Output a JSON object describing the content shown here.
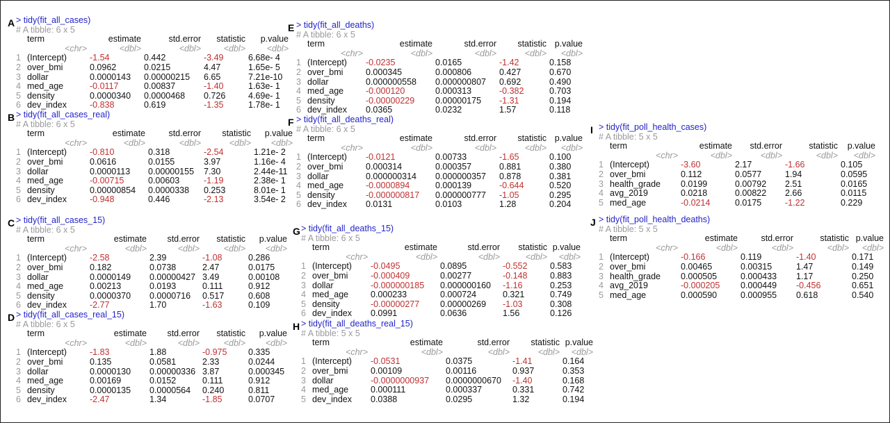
{
  "panels": [
    {
      "letter": "A",
      "command": "> tidy(fit_all_cases)",
      "tibble": "# A tibble: 6 x 5",
      "columns": [
        "term",
        "estimate",
        "std.error",
        "statistic",
        "p.value"
      ],
      "types": [
        "<chr>",
        "<dbl>",
        "<dbl>",
        "<dbl>",
        "<dbl>"
      ],
      "rows": [
        [
          "1",
          "(Intercept)",
          "-1.54",
          "0.442",
          "-3.49",
          "6.68e- 4"
        ],
        [
          "2",
          "over_bmi",
          "0.0962",
          "0.0215",
          "4.47",
          "1.65e- 5"
        ],
        [
          "3",
          "dollar",
          "0.0000143",
          "0.00000215",
          "6.65",
          "7.21e-10"
        ],
        [
          "4",
          "med_age",
          "-0.0117",
          "0.00837",
          "-1.40",
          "1.63e- 1"
        ],
        [
          "5",
          "density",
          "0.0000340",
          "0.0000468",
          "0.726",
          "4.69e- 1"
        ],
        [
          "6",
          "dev_index",
          "-0.838",
          "0.619",
          "-1.35",
          "1.78e- 1"
        ]
      ]
    },
    {
      "letter": "B",
      "command": "> tidy(fit_all_cases_real)",
      "tibble": "# A tibble: 6 x 5",
      "columns": [
        "term",
        "estimate",
        "std.error",
        "statistic",
        "p.value"
      ],
      "types": [
        "<chr>",
        "<dbl>",
        "<dbl>",
        "<dbl>",
        "<dbl>"
      ],
      "rows": [
        [
          "1",
          "(Intercept)",
          "-0.810",
          "0.318",
          "-2.54",
          "1.21e- 2"
        ],
        [
          "2",
          "over_bmi",
          "0.0616",
          "0.0155",
          "3.97",
          "1.16e- 4"
        ],
        [
          "3",
          "dollar",
          "0.0000113",
          "0.00000155",
          "7.30",
          "2.44e-11"
        ],
        [
          "4",
          "med_age",
          "-0.00715",
          "0.00603",
          "-1.19",
          "2.38e- 1"
        ],
        [
          "5",
          "density",
          "0.00000854",
          "0.0000338",
          "0.253",
          "8.01e- 1"
        ],
        [
          "6",
          "dev_index",
          "-0.948",
          "0.446",
          "-2.13",
          "3.54e- 2"
        ]
      ]
    },
    {
      "letter": "C",
      "command": "> tidy(fit_all_cases_15)",
      "tibble": "# A tibble: 6 x 5",
      "columns": [
        "term",
        "estimate",
        "std.error",
        "statistic",
        "p.value"
      ],
      "types": [
        "<chr>",
        "<dbl>",
        "<dbl>",
        "<dbl>",
        "<dbl>"
      ],
      "rows": [
        [
          "1",
          "(Intercept)",
          "-2.58",
          "2.39",
          "-1.08",
          "0.286"
        ],
        [
          "2",
          "over_bmi",
          "0.182",
          "0.0738",
          "2.47",
          "0.0175"
        ],
        [
          "3",
          "dollar",
          "0.0000149",
          "0.00000427",
          "3.49",
          "0.00108"
        ],
        [
          "4",
          "med_age",
          "0.00213",
          "0.0193",
          "0.111",
          "0.912"
        ],
        [
          "5",
          "density",
          "0.0000370",
          "0.0000716",
          "0.517",
          "0.608"
        ],
        [
          "6",
          "dev_index",
          "-2.77",
          "1.70",
          "-1.63",
          "0.109"
        ]
      ]
    },
    {
      "letter": "D",
      "command": "> tidy(fit_all_cases_real_15)",
      "tibble": "# A tibble: 6 x 5",
      "columns": [
        "term",
        "estimate",
        "std.error",
        "statistic",
        "p.value"
      ],
      "types": [
        "<chr>",
        "<dbl>",
        "<dbl>",
        "<dbl>",
        "<dbl>"
      ],
      "rows": [
        [
          "1",
          "(Intercept)",
          "-1.83",
          "1.88",
          "-0.975",
          "0.335"
        ],
        [
          "2",
          "over_bmi",
          "0.135",
          "0.0581",
          "2.33",
          "0.0244"
        ],
        [
          "3",
          "dollar",
          "0.0000130",
          "0.00000336",
          "3.87",
          "0.000345"
        ],
        [
          "4",
          "med_age",
          "0.00169",
          "0.0152",
          "0.111",
          "0.912"
        ],
        [
          "5",
          "density",
          "0.0000135",
          "0.0000564",
          "0.240",
          "0.811"
        ],
        [
          "6",
          "dev_index",
          "-2.47",
          "1.34",
          "-1.85",
          "0.0707"
        ]
      ]
    },
    {
      "letter": "E",
      "command": "> tidy(fit_all_deaths)",
      "tibble": "# A tibble: 6 x 5",
      "columns": [
        "term",
        "estimate",
        "std.error",
        "statistic",
        "p.value"
      ],
      "types": [
        "<chr>",
        "<dbl>",
        "<dbl>",
        "<dbl>",
        "<dbl>"
      ],
      "rows": [
        [
          "1",
          "(Intercept)",
          "-0.0235",
          "0.0165",
          "-1.42",
          "0.158"
        ],
        [
          "2",
          "over_bmi",
          "0.000345",
          "0.000806",
          "0.427",
          "0.670"
        ],
        [
          "3",
          "dollar",
          "0.000000558",
          "0.000000807",
          "0.692",
          "0.490"
        ],
        [
          "4",
          "med_age",
          "-0.000120",
          "0.000313",
          "-0.382",
          "0.703"
        ],
        [
          "5",
          "density",
          "-0.00000229",
          "0.00000175",
          "-1.31",
          "0.194"
        ],
        [
          "6",
          "dev_index",
          "0.0365",
          "0.0232",
          "1.57",
          "0.118"
        ]
      ]
    },
    {
      "letter": "F",
      "command": "> tidy(fit_all_deaths_real)",
      "tibble": "# A tibble: 6 x 5",
      "columns": [
        "term",
        "estimate",
        "std.error",
        "statistic",
        "p.value"
      ],
      "types": [
        "<chr>",
        "<dbl>",
        "<dbl>",
        "<dbl>",
        "<dbl>"
      ],
      "rows": [
        [
          "1",
          "(Intercept)",
          "-0.0121",
          "0.00733",
          "-1.65",
          "0.100"
        ],
        [
          "2",
          "over_bmi",
          "0.000314",
          "0.000357",
          "0.881",
          "0.380"
        ],
        [
          "3",
          "dollar",
          "0.000000314",
          "0.000000357",
          "0.878",
          "0.381"
        ],
        [
          "4",
          "med_age",
          "-0.0000894",
          "0.000139",
          "-0.644",
          "0.520"
        ],
        [
          "5",
          "density",
          "-0.000000817",
          "0.000000777",
          "-1.05",
          "0.295"
        ],
        [
          "6",
          "dev_index",
          "0.0131",
          "0.0103",
          "1.28",
          "0.204"
        ]
      ]
    },
    {
      "letter": "G",
      "command": "> tidy(fit_all_deaths_15)",
      "tibble": "# A tibble: 6 x 5",
      "columns": [
        "term",
        "estimate",
        "std.error",
        "statistic",
        "p.value"
      ],
      "types": [
        "<chr>",
        "<dbl>",
        "<dbl>",
        "<dbl>",
        "<dbl>"
      ],
      "rows": [
        [
          "1",
          "(Intercept)",
          "-0.0495",
          "0.0895",
          "-0.552",
          "0.583"
        ],
        [
          "2",
          "over_bmi",
          "-0.000409",
          "0.00277",
          "-0.148",
          "0.883"
        ],
        [
          "3",
          "dollar",
          "-0.000000185",
          "0.000000160",
          "-1.16",
          "0.253"
        ],
        [
          "4",
          "med_age",
          "0.000233",
          "0.000724",
          "0.321",
          "0.749"
        ],
        [
          "5",
          "density",
          "-0.00000277",
          "0.00000269",
          "-1.03",
          "0.308"
        ],
        [
          "6",
          "dev_index",
          "0.0991",
          "0.0636",
          "1.56",
          "0.126"
        ]
      ]
    },
    {
      "letter": "H",
      "command": "> tidy(fit_all_deaths_real_15)",
      "tibble": "# A tibble: 5 x 5",
      "columns": [
        "term",
        "estimate",
        "std.error",
        "statistic",
        "p.value"
      ],
      "types": [
        "<chr>",
        "<dbl>",
        "<dbl>",
        "<dbl>",
        "<dbl>"
      ],
      "rows": [
        [
          "1",
          "(Intercept)",
          "-0.0531",
          "0.0375",
          "-1.41",
          "0.164"
        ],
        [
          "2",
          "over_bmi",
          "0.00109",
          "0.00116",
          "0.937",
          "0.353"
        ],
        [
          "3",
          "dollar",
          "-0.0000000937",
          "0.0000000670",
          "-1.40",
          "0.168"
        ],
        [
          "4",
          "med_age",
          "0.000111",
          "0.000337",
          "0.331",
          "0.742"
        ],
        [
          "5",
          "dev_index",
          "0.0388",
          "0.0295",
          "1.32",
          "0.194"
        ]
      ]
    },
    {
      "letter": "I",
      "command": "> tidy(fit_poll_health_cases)",
      "tibble": "# A tibble: 5 x 5",
      "columns": [
        "term",
        "estimate",
        "std.error",
        "statistic",
        "p.value"
      ],
      "types": [
        "<chr>",
        "<dbl>",
        "<dbl>",
        "<dbl>",
        "<dbl>"
      ],
      "rows": [
        [
          "1",
          "(Intercept)",
          "-3.60",
          "2.17",
          "-1.66",
          "0.105"
        ],
        [
          "2",
          "over_bmi",
          "0.112",
          "0.0577",
          "1.94",
          "0.0595"
        ],
        [
          "3",
          "health_grade",
          "0.0199",
          "0.00792",
          "2.51",
          "0.0165"
        ],
        [
          "4",
          "avg_2019",
          "0.0218",
          "0.00822",
          "2.66",
          "0.0115"
        ],
        [
          "5",
          "med_age",
          "-0.0214",
          "0.0175",
          "-1.22",
          "0.229"
        ]
      ]
    },
    {
      "letter": "J",
      "command": "> tidy(fit_poll_health_deaths)",
      "tibble": "# A tibble: 5 x 5",
      "columns": [
        "term",
        "estimate",
        "std.error",
        "statistic",
        "p.value"
      ],
      "types": [
        "<chr>",
        "<dbl>",
        "<dbl>",
        "<dbl>",
        "<dbl>"
      ],
      "rows": [
        [
          "1",
          "(Intercept)",
          "-0.166",
          "0.119",
          "-1.40",
          "0.171"
        ],
        [
          "2",
          "over_bmi",
          "0.00465",
          "0.00315",
          "1.47",
          "0.149"
        ],
        [
          "3",
          "health_grade",
          "0.000505",
          "0.000433",
          "1.17",
          "0.250"
        ],
        [
          "4",
          "avg_2019",
          "-0.000205",
          "0.000449",
          "-0.456",
          "0.651"
        ],
        [
          "5",
          "med_age",
          "0.000590",
          "0.000955",
          "0.618",
          "0.540"
        ]
      ]
    }
  ]
}
